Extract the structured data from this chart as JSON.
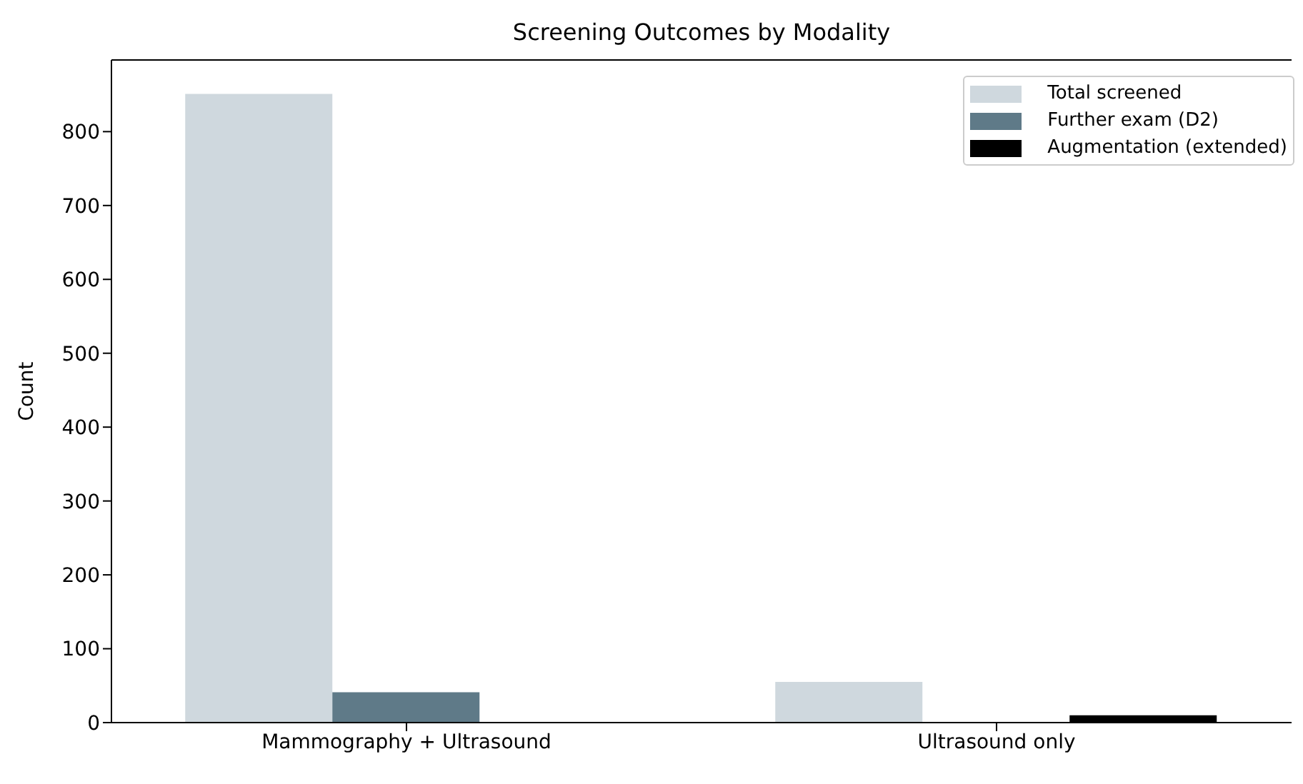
{
  "chart_data": {
    "type": "bar",
    "title": "Screening Outcomes by Modality",
    "ylabel": "Count",
    "categories": [
      "Mammography + Ultrasound",
      "Ultrasound only"
    ],
    "series": [
      {
        "name": "Total screened",
        "color": "#cfd8de",
        "values": [
          851,
          55
        ]
      },
      {
        "name": "Further exam (D2)",
        "color": "#5f7a88",
        "values": [
          41,
          null
        ]
      },
      {
        "name": "Augmentation (extended)",
        "color": "#000000",
        "values": [
          null,
          10
        ]
      }
    ],
    "ylim": [
      0,
      897
    ],
    "yticks": [
      0,
      100,
      200,
      300,
      400,
      500,
      600,
      700,
      800
    ],
    "legend": "top right"
  }
}
